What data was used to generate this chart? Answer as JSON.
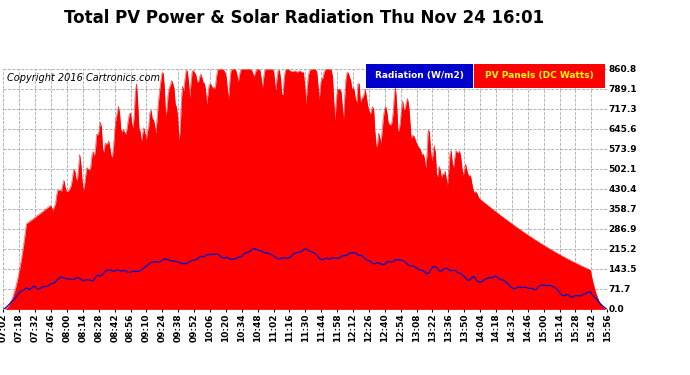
{
  "title": "Total PV Power & Solar Radiation Thu Nov 24 16:01",
  "copyright": "Copyright 2016 Cartronics.com",
  "legend_radiation": "Radiation (W/m2)",
  "legend_pv": "PV Panels (DC Watts)",
  "yticks": [
    0.0,
    71.7,
    143.5,
    215.2,
    286.9,
    358.7,
    430.4,
    502.1,
    573.9,
    645.6,
    717.3,
    789.1,
    860.8
  ],
  "ymax": 860.8,
  "ymin": 0.0,
  "bg_color": "#ffffff",
  "plot_bg_color": "#ffffff",
  "grid_color": "#aaaaaa",
  "pv_color": "#ff0000",
  "radiation_color": "#0000cc",
  "radiation_text_color": "#ffff00",
  "legend_radiation_bg": "#0000cc",
  "legend_pv_bg": "#ff0000",
  "title_fontsize": 12,
  "copyright_fontsize": 7,
  "tick_fontsize": 6.5,
  "time_labels": [
    "07:02",
    "07:18",
    "07:32",
    "07:46",
    "08:00",
    "08:14",
    "08:28",
    "08:42",
    "08:56",
    "09:10",
    "09:24",
    "09:38",
    "09:52",
    "10:06",
    "10:20",
    "10:34",
    "10:48",
    "11:02",
    "11:16",
    "11:30",
    "11:44",
    "11:58",
    "12:12",
    "12:26",
    "12:40",
    "12:54",
    "13:08",
    "13:22",
    "13:36",
    "13:50",
    "14:04",
    "14:18",
    "14:32",
    "14:46",
    "15:00",
    "15:14",
    "15:28",
    "15:42",
    "15:56"
  ]
}
